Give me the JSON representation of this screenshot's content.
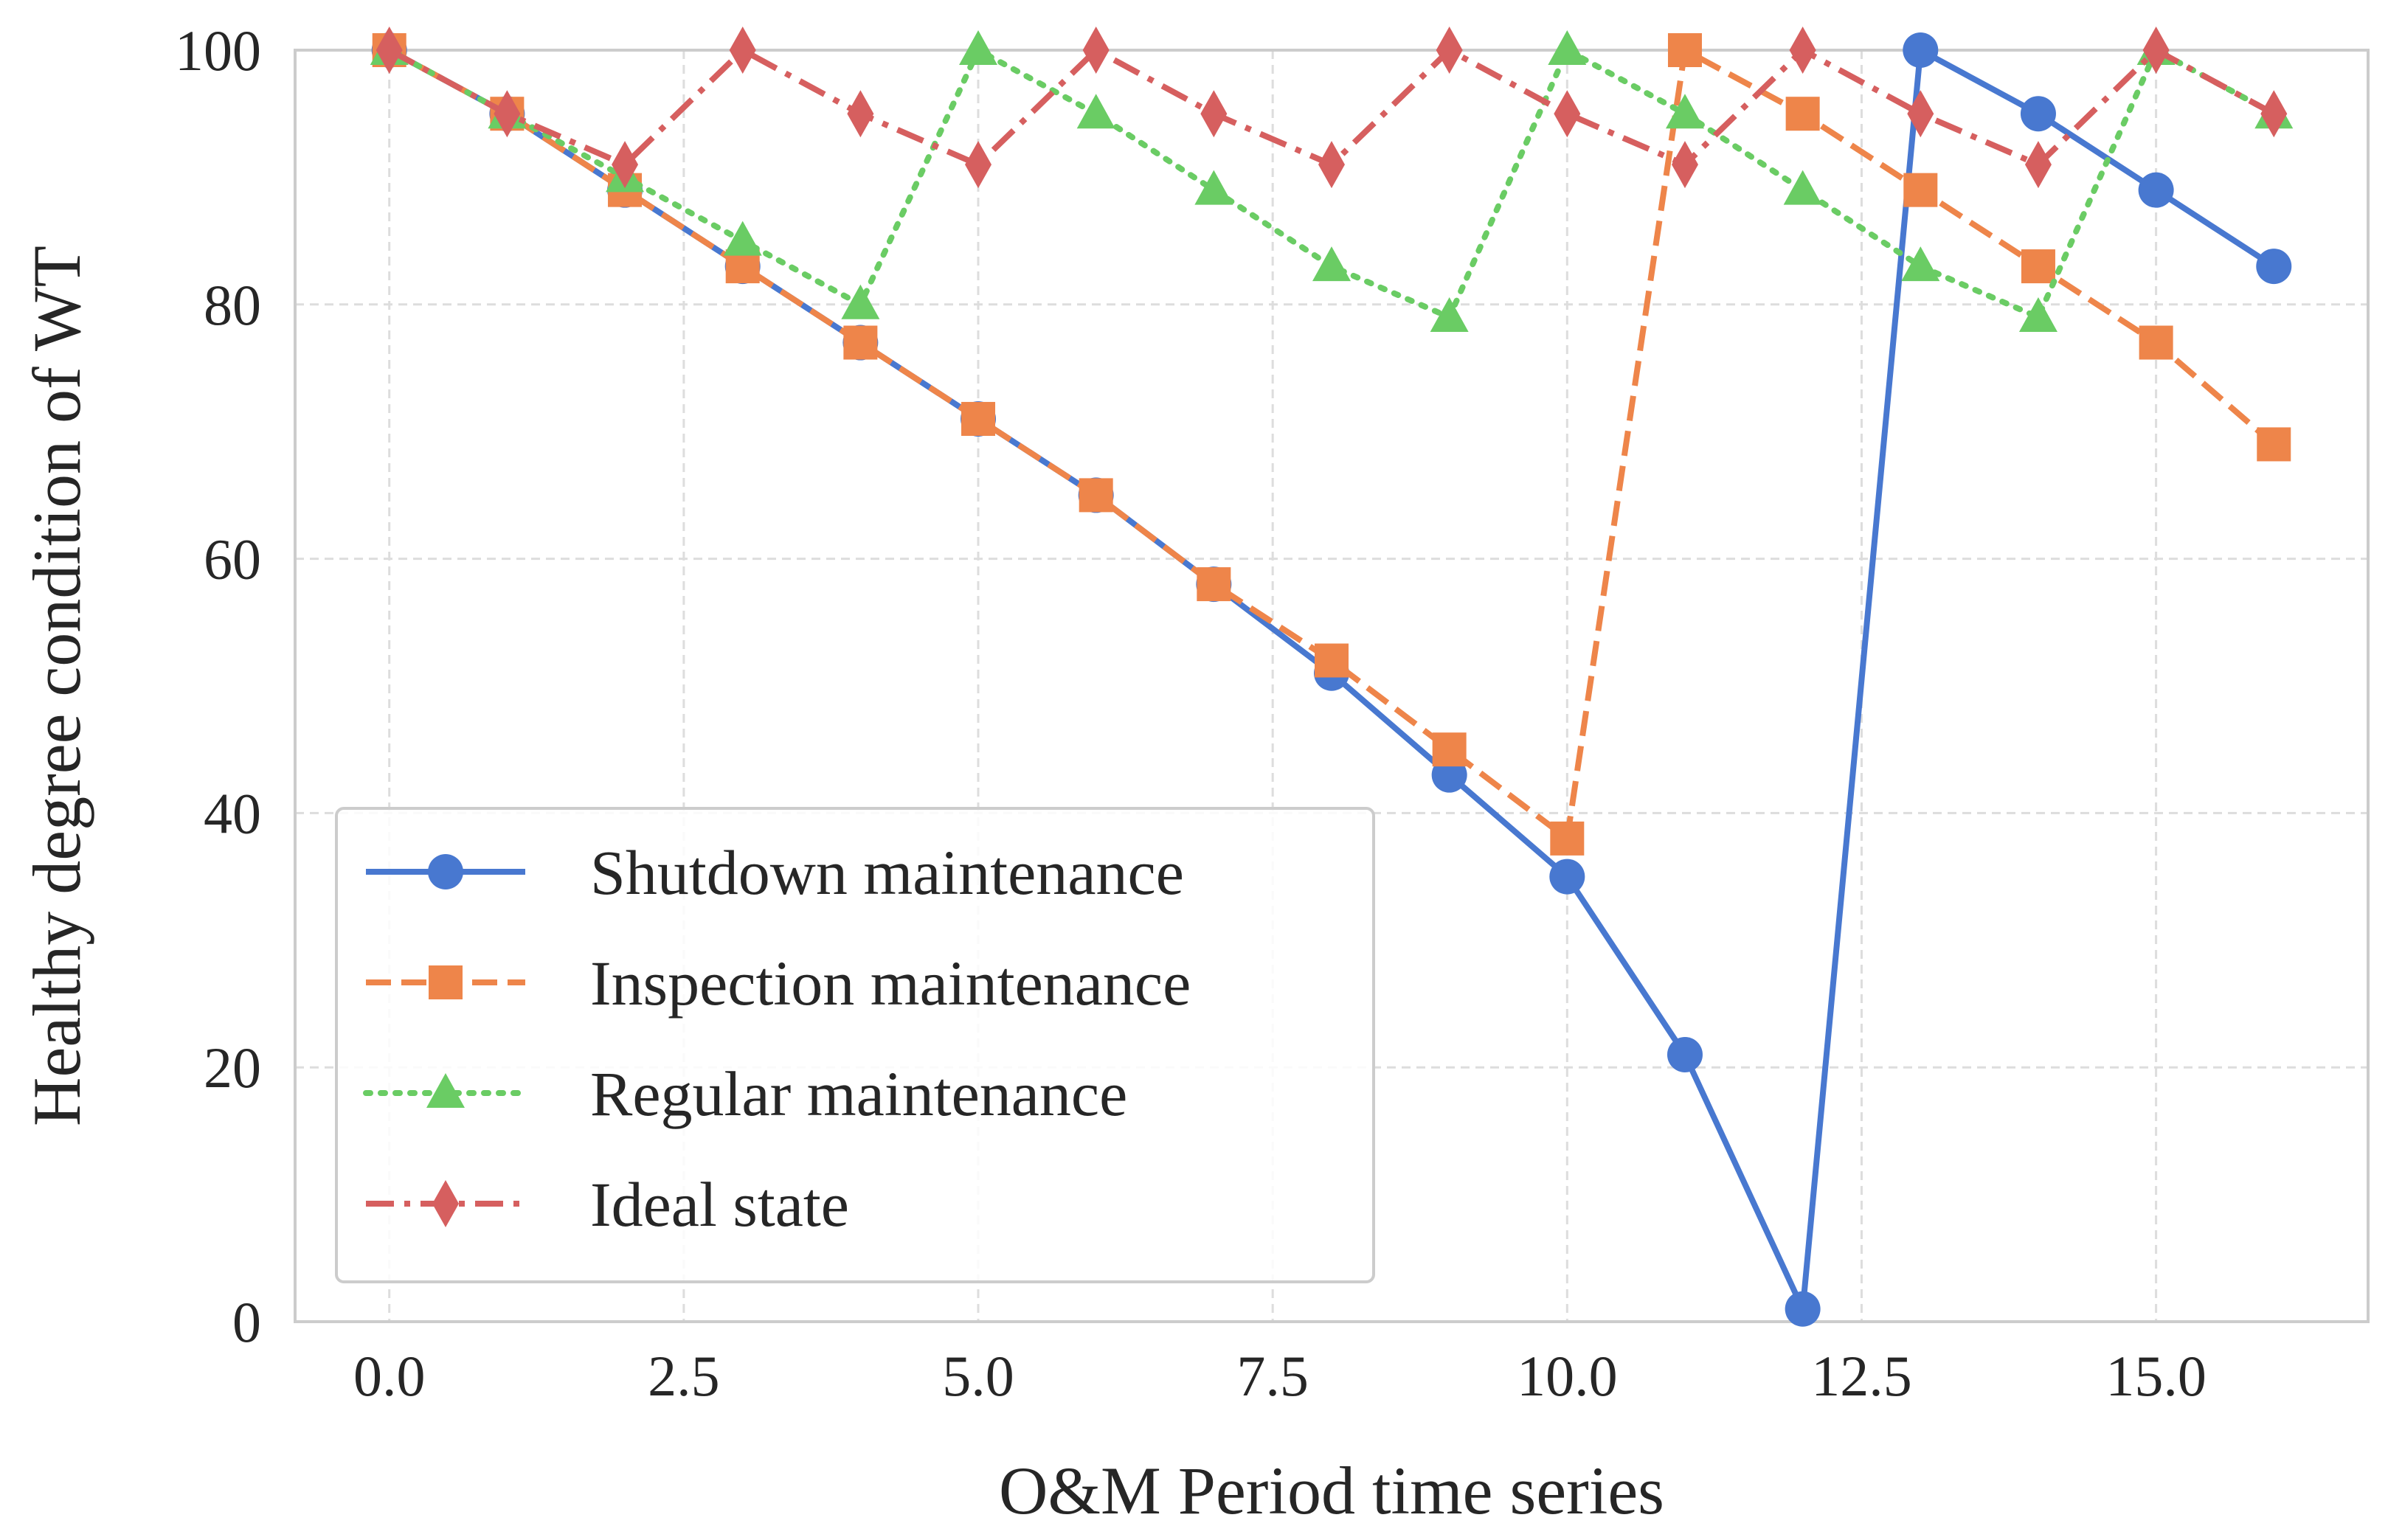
{
  "chart_data": {
    "type": "line",
    "title": "",
    "xlabel": "O&M Period time series",
    "ylabel": "Healthy degree condition of WT",
    "xlim": [
      -0.8,
      16.8
    ],
    "ylim": [
      0,
      100
    ],
    "xticks": [
      0.0,
      2.5,
      5.0,
      7.5,
      10.0,
      12.5,
      15.0
    ],
    "xtick_labels": [
      "0.0",
      "2.5",
      "5.0",
      "7.5",
      "10.0",
      "12.5",
      "15.0"
    ],
    "yticks": [
      0,
      20,
      40,
      60,
      80,
      100
    ],
    "ytick_labels": [
      "0",
      "20",
      "40",
      "60",
      "80",
      "100"
    ],
    "grid": true,
    "legend_position": "lower-left",
    "x": [
      0,
      1,
      2,
      3,
      4,
      5,
      6,
      7,
      8,
      9,
      10,
      11,
      12,
      13,
      14,
      15,
      16
    ],
    "series": [
      {
        "name": "Shutdown maintenance",
        "color": "#4878d0",
        "line_style": "solid",
        "marker": "circle",
        "values": [
          100,
          95,
          89,
          83,
          77,
          71,
          65,
          58,
          51,
          43,
          35,
          21,
          1,
          100,
          95,
          89,
          83
        ]
      },
      {
        "name": "Inspection maintenance",
        "color": "#ee854a",
        "line_style": "dashed",
        "marker": "square",
        "values": [
          100,
          95,
          89,
          83,
          77,
          71,
          65,
          58,
          52,
          45,
          38,
          100,
          95,
          89,
          83,
          77,
          69
        ]
      },
      {
        "name": "Regular maintenance",
        "color": "#6acc64",
        "line_style": "dotted",
        "marker": "triangle",
        "values": [
          100,
          95,
          90,
          85,
          80,
          100,
          95,
          89,
          83,
          79,
          100,
          95,
          89,
          83,
          79,
          100,
          95
        ]
      },
      {
        "name": "Ideal state",
        "color": "#d65f5f",
        "line_style": "dashdot",
        "marker": "diamond",
        "values": [
          100,
          95,
          91,
          100,
          95,
          91,
          100,
          95,
          91,
          100,
          95,
          91,
          100,
          95,
          91,
          100,
          95
        ]
      }
    ]
  }
}
